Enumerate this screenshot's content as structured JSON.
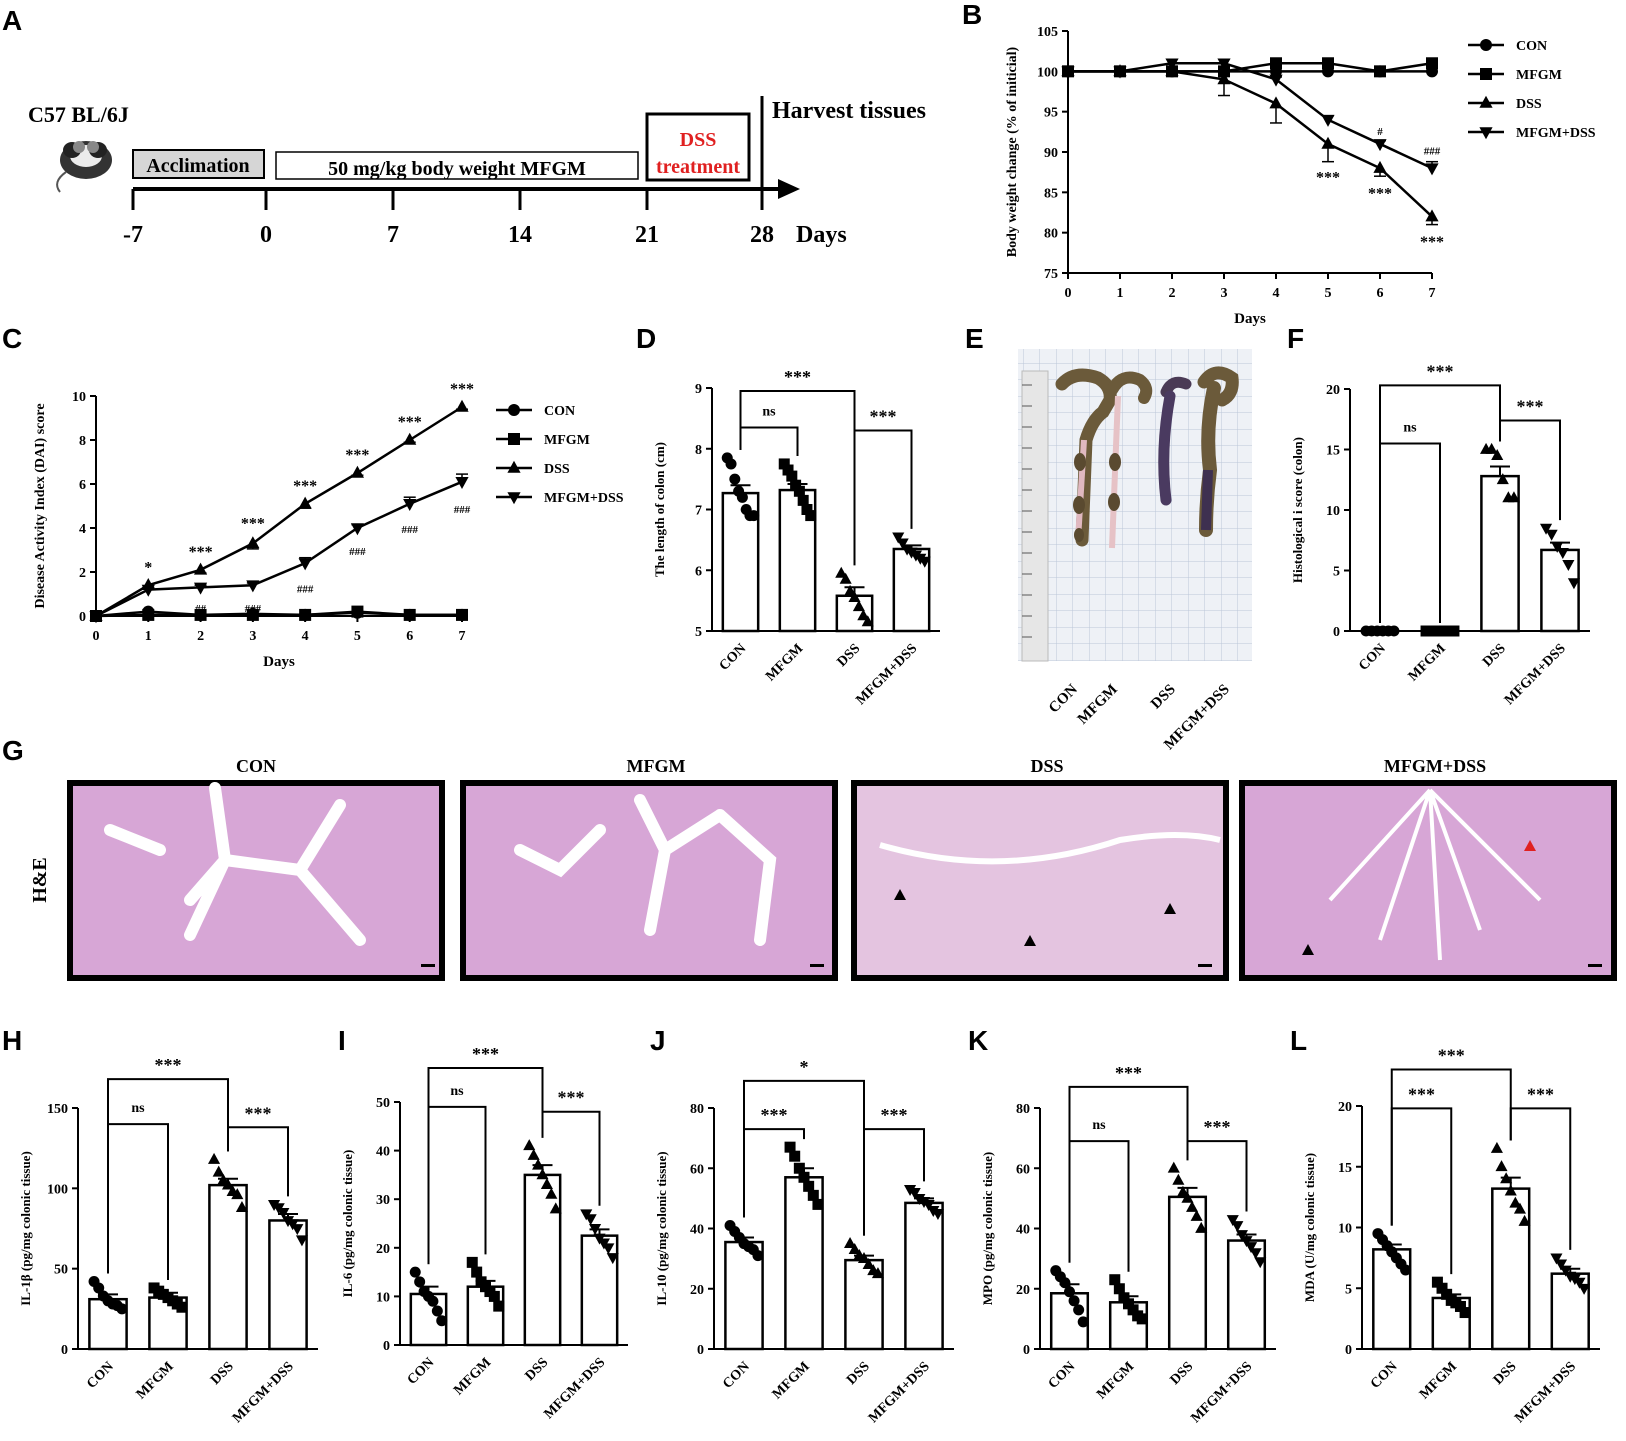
{
  "panel_letters": [
    "A",
    "B",
    "C",
    "D",
    "E",
    "F",
    "G",
    "H",
    "I",
    "J",
    "K",
    "L"
  ],
  "colors": {
    "treatment_text": "#e02020",
    "tissue_stain": "#d7a6d6",
    "lumen": "#ffffff",
    "grid": "#bcc6d8"
  },
  "timeline": {
    "strain": "C57 BL/6J",
    "acclimation": "Acclimation",
    "mfgm_period": "50 mg/kg body weight MFGM",
    "dss_line1": "DSS",
    "dss_line2": "treatment",
    "harvest": "Harvest tissues",
    "ticks": [
      "-7",
      "0",
      "7",
      "14",
      "21",
      "28"
    ],
    "axis_unit": "Days"
  },
  "photo_labels": [
    "CON",
    "MFGM",
    "DSS",
    "MFGM+DSS"
  ],
  "he_panel": {
    "row_label": "H&E",
    "titles": [
      "CON",
      "MFGM",
      "DSS",
      "MFGM+DSS"
    ]
  },
  "chart_data": [
    {
      "id": "B",
      "type": "line",
      "xlabel": "Days",
      "ylabel": "Body weight change (% of initicial)",
      "ylim": [
        75,
        105
      ],
      "yticks": [
        75,
        80,
        85,
        90,
        95,
        100,
        105
      ],
      "x": [
        0,
        1,
        2,
        3,
        4,
        5,
        6,
        7
      ],
      "legend": "right",
      "series": [
        {
          "name": "CON",
          "marker": "circle",
          "values": [
            100,
            100,
            100,
            100,
            100,
            100,
            100,
            100
          ],
          "err": [
            0,
            0,
            0,
            0,
            0,
            0,
            0,
            0
          ]
        },
        {
          "name": "MFGM",
          "marker": "square",
          "values": [
            100,
            100,
            100,
            100,
            101,
            101,
            100,
            101
          ],
          "err": [
            0,
            0,
            0,
            0,
            0,
            0,
            0,
            0
          ]
        },
        {
          "name": "DSS",
          "marker": "triangle-up",
          "values": [
            100,
            100,
            100,
            99,
            96,
            91,
            88,
            82
          ],
          "err": [
            0,
            0,
            0,
            2,
            2.4,
            2.2,
            1,
            1
          ]
        },
        {
          "name": "MFGM+DSS",
          "marker": "triangle-down",
          "values": [
            100,
            100,
            101,
            101,
            99,
            94,
            91,
            88
          ],
          "err": [
            0,
            0,
            0,
            0,
            0.3,
            0.5,
            0.4,
            0.8
          ]
        }
      ],
      "annotations": [
        {
          "x": 5,
          "text": "***",
          "below": 88.2
        },
        {
          "x": 6,
          "text": "***",
          "below": 86.2
        },
        {
          "x": 7,
          "text": "***",
          "below": 80.2
        },
        {
          "x": 6,
          "text": "#",
          "above": 91.6
        },
        {
          "x": 7,
          "text": "###",
          "above": 89.2
        }
      ]
    },
    {
      "id": "C",
      "type": "line",
      "xlabel": "Days",
      "ylabel": "Disease Activity Index (DAI) score",
      "ylim": [
        0,
        10
      ],
      "yticks": [
        0,
        2,
        4,
        6,
        8,
        10
      ],
      "x": [
        0,
        1,
        2,
        3,
        4,
        5,
        6,
        7
      ],
      "legend": "right",
      "series": [
        {
          "name": "CON",
          "marker": "circle",
          "values": [
            0,
            0.2,
            0.05,
            0.1,
            0.05,
            0.15,
            0.05,
            0.05
          ],
          "err": [
            0,
            0,
            0,
            0,
            0,
            0,
            0,
            0
          ]
        },
        {
          "name": "MFGM",
          "marker": "square",
          "values": [
            0,
            0.05,
            0.05,
            0.05,
            0.05,
            0.2,
            0.05,
            0.05
          ],
          "err": [
            0,
            0,
            0,
            0,
            0,
            0,
            0,
            0
          ]
        },
        {
          "name": "DSS",
          "marker": "triangle-up",
          "values": [
            0,
            1.4,
            2.1,
            3.3,
            5.1,
            6.5,
            8.0,
            9.5
          ],
          "err": [
            0,
            0.12,
            0.15,
            0.25,
            0.2,
            0.1,
            0.1,
            0.1
          ]
        },
        {
          "name": "MFGM+DSS",
          "marker": "triangle-down",
          "values": [
            0,
            1.2,
            1.3,
            1.4,
            2.4,
            4.0,
            5.1,
            6.1
          ],
          "err": [
            0,
            0.1,
            0.1,
            0.1,
            0.25,
            0.15,
            0.3,
            0.35
          ]
        }
      ],
      "annotations": [
        {
          "x": 1,
          "text": "*",
          "above": 1.8
        },
        {
          "x": 2,
          "text": "***",
          "above": 2.5
        },
        {
          "x": 3,
          "text": "***",
          "above": 3.8
        },
        {
          "x": 4,
          "text": "***",
          "above": 5.5
        },
        {
          "x": 5,
          "text": "***",
          "above": 6.9
        },
        {
          "x": 6,
          "text": "***",
          "above": 8.4
        },
        {
          "x": 7,
          "text": "***",
          "above": 9.9
        },
        {
          "x": 2,
          "text": "##",
          "below": 0.9
        },
        {
          "x": 3,
          "text": "###",
          "below": 0.9
        },
        {
          "x": 4,
          "text": "###",
          "below": 1.8
        },
        {
          "x": 5,
          "text": "###",
          "below": 3.5
        },
        {
          "x": 6,
          "text": "###",
          "below": 4.5
        },
        {
          "x": 7,
          "text": "###",
          "below": 5.4
        }
      ]
    },
    {
      "id": "D",
      "type": "bar",
      "ylabel": "The length of colon (cm)",
      "ylim": [
        5,
        9
      ],
      "yticks": [
        5,
        6,
        7,
        8,
        9
      ],
      "categories": [
        "CON",
        "MFGM",
        "DSS",
        "MFGM+DSS"
      ],
      "values": [
        7.27,
        7.32,
        5.58,
        6.35
      ],
      "err": [
        0.13,
        0.1,
        0.14,
        0.06
      ],
      "markers": [
        "circle",
        "square",
        "triangle-up",
        "triangle-down"
      ],
      "points": [
        [
          7.85,
          7.75,
          7.5,
          7.3,
          7.2,
          7.0,
          6.9,
          6.9
        ],
        [
          7.75,
          7.65,
          7.55,
          7.4,
          7.3,
          7.15,
          7.0,
          6.9
        ],
        [
          5.95,
          5.85,
          5.65,
          5.55,
          5.4,
          5.25,
          5.15
        ],
        [
          6.55,
          6.45,
          6.35,
          6.3,
          6.25,
          6.2,
          6.15
        ]
      ],
      "brackets": [
        {
          "from": 0,
          "to": 1,
          "text": "ns",
          "y": 8.35
        },
        {
          "from": 0,
          "to": 2,
          "text": "***",
          "y": 8.95
        },
        {
          "from": 2,
          "to": 3,
          "text": "***",
          "y": 8.3
        }
      ]
    },
    {
      "id": "F",
      "type": "bar",
      "ylabel": "Histological i score (colon)",
      "ylim": [
        0,
        20
      ],
      "yticks": [
        0,
        5,
        10,
        15,
        20
      ],
      "categories": [
        "CON",
        "MFGM",
        "DSS",
        "MFGM+DSS"
      ],
      "values": [
        0,
        0,
        12.8,
        6.7
      ],
      "err": [
        0,
        0,
        0.8,
        0.6
      ],
      "markers": [
        "circle",
        "square",
        "triangle-up",
        "triangle-down"
      ],
      "points": [
        [
          0,
          0,
          0,
          0,
          0,
          0
        ],
        [
          0,
          0,
          0,
          0,
          0,
          0
        ],
        [
          15,
          15,
          14.5,
          12.5,
          11,
          11
        ],
        [
          8.5,
          8,
          7,
          6.5,
          5.5,
          4
        ]
      ],
      "brackets": [
        {
          "from": 0,
          "to": 1,
          "text": "ns",
          "y": 15.5
        },
        {
          "from": 0,
          "to": 2,
          "text": "***",
          "y": 20.3
        },
        {
          "from": 2,
          "to": 3,
          "text": "***",
          "y": 17.4
        }
      ]
    },
    {
      "id": "H",
      "type": "bar",
      "ylabel": "IL-1β (pg/mg colonic tissue)",
      "ylim": [
        0,
        150
      ],
      "yticks": [
        0,
        50,
        100,
        150
      ],
      "categories": [
        "CON",
        "MFGM",
        "DSS",
        "MFGM+DSS"
      ],
      "values": [
        31,
        32,
        102,
        80
      ],
      "err": [
        3,
        3,
        4,
        4
      ],
      "markers": [
        "circle",
        "square",
        "triangle-up",
        "triangle-down"
      ],
      "points": [
        [
          42,
          38,
          33,
          30,
          28,
          27,
          25
        ],
        [
          38,
          36,
          34,
          32,
          30,
          28,
          26
        ],
        [
          118,
          110,
          105,
          102,
          98,
          96,
          88
        ],
        [
          90,
          88,
          85,
          80,
          78,
          75,
          68
        ]
      ],
      "brackets": [
        {
          "from": 0,
          "to": 1,
          "text": "ns",
          "y": 140
        },
        {
          "from": 0,
          "to": 2,
          "text": "***",
          "y": 168
        },
        {
          "from": 2,
          "to": 3,
          "text": "***",
          "y": 138
        }
      ]
    },
    {
      "id": "I",
      "type": "bar",
      "ylabel": "IL-6 (pg/mg colonic tissue)",
      "ylim": [
        0,
        50
      ],
      "yticks": [
        0,
        10,
        20,
        30,
        40,
        50
      ],
      "categories": [
        "CON",
        "MFGM",
        "DSS",
        "MFGM+DSS"
      ],
      "values": [
        10.5,
        12,
        35,
        22.5
      ],
      "err": [
        1.5,
        1.2,
        2,
        1.3
      ],
      "markers": [
        "circle",
        "square",
        "triangle-up",
        "triangle-down"
      ],
      "points": [
        [
          15,
          13,
          11,
          10,
          9,
          7,
          5
        ],
        [
          17,
          15,
          13,
          12,
          11,
          10,
          8
        ],
        [
          41,
          39,
          37,
          35,
          33,
          31,
          28
        ],
        [
          27,
          26,
          24,
          22,
          21,
          20,
          18
        ]
      ],
      "brackets": [
        {
          "from": 0,
          "to": 1,
          "text": "ns",
          "y": 49
        },
        {
          "from": 0,
          "to": 2,
          "text": "***",
          "y": 57
        },
        {
          "from": 2,
          "to": 3,
          "text": "***",
          "y": 48
        }
      ]
    },
    {
      "id": "J",
      "type": "bar",
      "ylabel": "IL-10 (pg/mg colonic tissue)",
      "ylim": [
        0,
        80
      ],
      "yticks": [
        0,
        20,
        40,
        60,
        80
      ],
      "categories": [
        "CON",
        "MFGM",
        "DSS",
        "MFGM+DSS"
      ],
      "values": [
        35.5,
        57,
        29.5,
        48.5
      ],
      "err": [
        1.5,
        3,
        1.5,
        1.5
      ],
      "markers": [
        "circle",
        "square",
        "triangle-up",
        "triangle-down"
      ],
      "points": [
        [
          41,
          39,
          37,
          35,
          34,
          33,
          31
        ],
        [
          67,
          64,
          60,
          57,
          54,
          51,
          48
        ],
        [
          35,
          33,
          31,
          30,
          28,
          26,
          25
        ],
        [
          53,
          52,
          50,
          49,
          48,
          46,
          45
        ]
      ],
      "brackets": [
        {
          "from": 0,
          "to": 1,
          "text": "***",
          "y": 73
        },
        {
          "from": 0,
          "to": 2,
          "text": "*",
          "y": 89
        },
        {
          "from": 2,
          "to": 3,
          "text": "***",
          "y": 73
        }
      ]
    },
    {
      "id": "K",
      "type": "bar",
      "ylabel": "MPO (pg/mg colonic tissue)",
      "ylim": [
        0,
        80
      ],
      "yticks": [
        0,
        20,
        40,
        60,
        80
      ],
      "categories": [
        "CON",
        "MFGM",
        "DSS",
        "MFGM+DSS"
      ],
      "values": [
        18.5,
        15.5,
        50.5,
        36
      ],
      "err": [
        3,
        2,
        3,
        2
      ],
      "markers": [
        "circle",
        "square",
        "triangle-up",
        "triangle-down"
      ],
      "points": [
        [
          26,
          24,
          22,
          19,
          16,
          13,
          9
        ],
        [
          23,
          20,
          17,
          15,
          13,
          11,
          10
        ],
        [
          60,
          56,
          52,
          50,
          47,
          44,
          40
        ],
        [
          43,
          41,
          38,
          36,
          34,
          32,
          29
        ]
      ],
      "brackets": [
        {
          "from": 0,
          "to": 1,
          "text": "ns",
          "y": 69
        },
        {
          "from": 0,
          "to": 2,
          "text": "***",
          "y": 87
        },
        {
          "from": 2,
          "to": 3,
          "text": "***",
          "y": 69
        }
      ]
    },
    {
      "id": "L",
      "type": "bar",
      "ylabel": "MDA (U/mg colonic tissue)",
      "ylim": [
        0,
        20
      ],
      "yticks": [
        0,
        5,
        10,
        15,
        20
      ],
      "categories": [
        "CON",
        "MFGM",
        "DSS",
        "MFGM+DSS"
      ],
      "values": [
        8.2,
        4.2,
        13.2,
        6.2
      ],
      "err": [
        0.4,
        0.3,
        0.9,
        0.4
      ],
      "markers": [
        "circle",
        "square",
        "triangle-up",
        "triangle-down"
      ],
      "points": [
        [
          9.5,
          9,
          8.5,
          8,
          7.5,
          7,
          6.5
        ],
        [
          5.5,
          5,
          4.5,
          4,
          3.8,
          3.5,
          3
        ],
        [
          16.5,
          15,
          14,
          13,
          12,
          11.5,
          10.5
        ],
        [
          7.5,
          7,
          6.5,
          6,
          5.8,
          5.5,
          5
        ]
      ],
      "brackets": [
        {
          "from": 0,
          "to": 1,
          "text": "***",
          "y": 19.8
        },
        {
          "from": 0,
          "to": 2,
          "text": "***",
          "y": 23
        },
        {
          "from": 2,
          "to": 3,
          "text": "***",
          "y": 19.8
        }
      ]
    }
  ]
}
